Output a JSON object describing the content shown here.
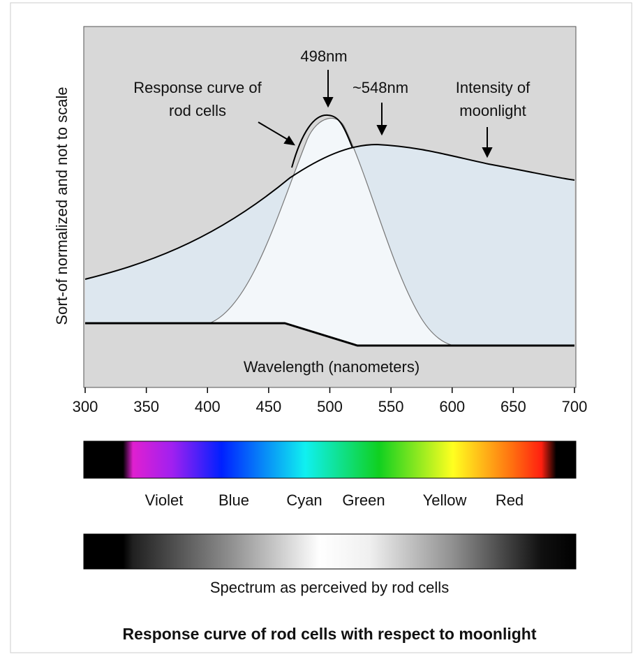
{
  "y_axis_label": "Sort-of normalized and not to scale",
  "x_axis_label": "Wavelength (nanometers)",
  "x_axis": {
    "xlim": [
      300,
      700
    ],
    "xticks": [
      300,
      350,
      400,
      450,
      500,
      550,
      600,
      650,
      700
    ]
  },
  "annotations": {
    "peak_rod": "498nm",
    "rod_curve": [
      "Response curve of",
      "rod cells"
    ],
    "peak_moon": "~548nm",
    "moonlight": [
      "Intensity of",
      "moonlight"
    ]
  },
  "color_labels": [
    "Violet",
    "Blue",
    "Cyan",
    "Green",
    "Yellow",
    "Red"
  ],
  "rod_bar_caption": "Spectrum as perceived by rod cells",
  "caption": "Response curve of rod cells with respect to moonlight"
}
